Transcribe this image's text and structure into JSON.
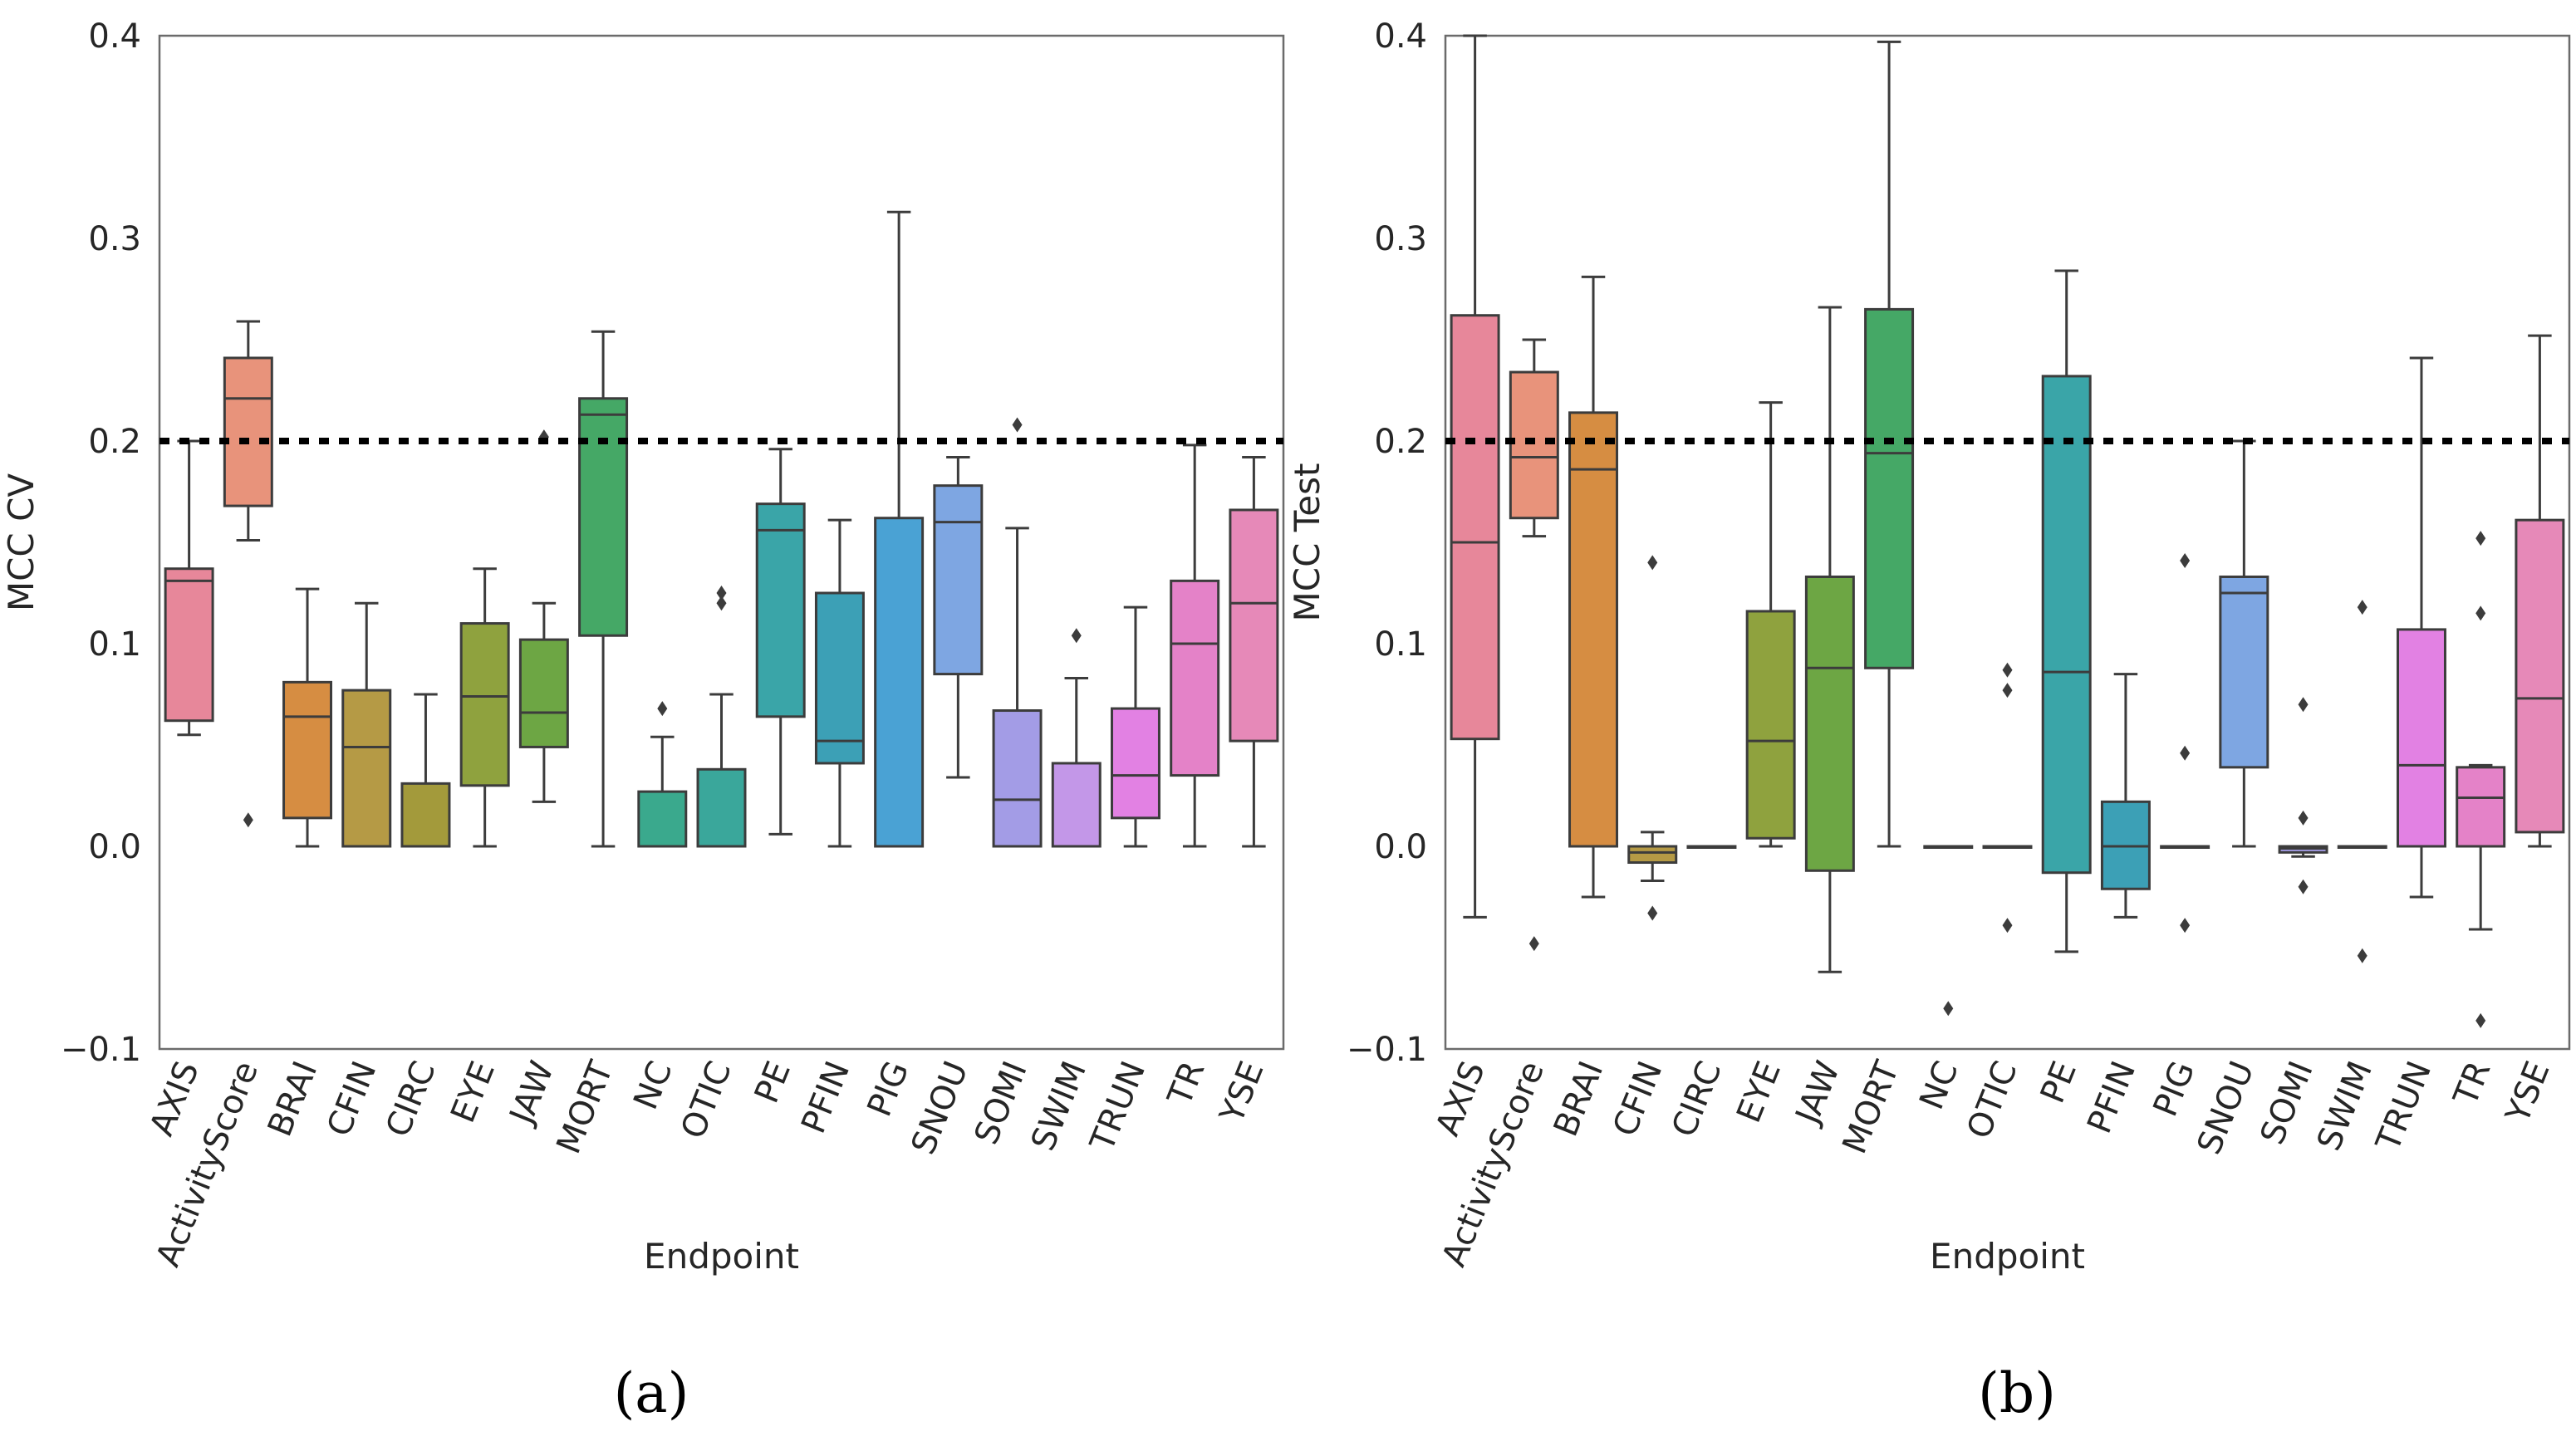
{
  "colors": {
    "AXIS": "#e7879a",
    "ActivityScore": "#e8937b",
    "BRAI": "#d68d42",
    "CFIN": "#b59a45",
    "CIRC": "#a39a3b",
    "EYE": "#8fa23e",
    "JAW": "#6da644",
    "MORT": "#45a866",
    "NC": "#3aa98d",
    "OTIC": "#3aa79b",
    "PE": "#3aa5a8",
    "PFIN": "#3ca0b6",
    "PIG": "#4aa2d4",
    "SNOU": "#7ea6e2",
    "SOMI": "#a39ce6",
    "SWIM": "#c397e8",
    "TRUN": "#e281e3",
    "TR": "#e482c8",
    "YSE": "#e689b8"
  },
  "chart_data": [
    {
      "type": "box",
      "panel_label": "(a)",
      "xlabel": "Endpoint",
      "ylabel": "MCC CV",
      "ylim": [
        -0.1,
        0.4
      ],
      "yticks": [
        "−0.1",
        "0.0",
        "0.1",
        "0.2",
        "0.3",
        "0.4"
      ],
      "threshold": 0.2,
      "categories": [
        "AXIS",
        "ActivityScore",
        "BRAI",
        "CFIN",
        "CIRC",
        "EYE",
        "JAW",
        "MORT",
        "NC",
        "OTIC",
        "PE",
        "PFIN",
        "PIG",
        "SNOU",
        "SOMI",
        "SWIM",
        "TRUN",
        "TR",
        "YSE"
      ],
      "boxes": [
        {
          "q1": 0.062,
          "median": 0.131,
          "q3": 0.137,
          "whislo": 0.055,
          "whishi": 0.2,
          "fliers": []
        },
        {
          "q1": 0.168,
          "median": 0.221,
          "q3": 0.241,
          "whislo": 0.151,
          "whishi": 0.259,
          "fliers": [
            0.013
          ]
        },
        {
          "q1": 0.014,
          "median": 0.064,
          "q3": 0.081,
          "whislo": 0.0,
          "whishi": 0.127,
          "fliers": []
        },
        {
          "q1": 0.0,
          "median": 0.049,
          "q3": 0.077,
          "whislo": 0.0,
          "whishi": 0.12,
          "fliers": []
        },
        {
          "q1": 0.0,
          "median": 0.0,
          "q3": 0.031,
          "whislo": 0.0,
          "whishi": 0.075,
          "fliers": []
        },
        {
          "q1": 0.03,
          "median": 0.074,
          "q3": 0.11,
          "whislo": 0.0,
          "whishi": 0.137,
          "fliers": []
        },
        {
          "q1": 0.049,
          "median": 0.066,
          "q3": 0.102,
          "whislo": 0.022,
          "whishi": 0.12,
          "fliers": [
            0.202
          ]
        },
        {
          "q1": 0.104,
          "median": 0.213,
          "q3": 0.221,
          "whislo": 0.0,
          "whishi": 0.254,
          "fliers": []
        },
        {
          "q1": 0.0,
          "median": 0.0,
          "q3": 0.027,
          "whislo": 0.0,
          "whishi": 0.054,
          "fliers": [
            0.068
          ]
        },
        {
          "q1": 0.0,
          "median": 0.0,
          "q3": 0.038,
          "whislo": 0.0,
          "whishi": 0.075,
          "fliers": [
            0.12,
            0.125
          ]
        },
        {
          "q1": 0.064,
          "median": 0.156,
          "q3": 0.169,
          "whislo": 0.006,
          "whishi": 0.196,
          "fliers": []
        },
        {
          "q1": 0.041,
          "median": 0.052,
          "q3": 0.125,
          "whislo": 0.0,
          "whishi": 0.161,
          "fliers": []
        },
        {
          "q1": 0.0,
          "median": 0.0,
          "q3": 0.162,
          "whislo": 0.0,
          "whishi": 0.313,
          "fliers": []
        },
        {
          "q1": 0.085,
          "median": 0.16,
          "q3": 0.178,
          "whislo": 0.034,
          "whishi": 0.192,
          "fliers": []
        },
        {
          "q1": 0.0,
          "median": 0.023,
          "q3": 0.067,
          "whislo": 0.0,
          "whishi": 0.157,
          "fliers": [
            0.208
          ]
        },
        {
          "q1": 0.0,
          "median": 0.0,
          "q3": 0.041,
          "whislo": 0.0,
          "whishi": 0.083,
          "fliers": [
            0.104
          ]
        },
        {
          "q1": 0.014,
          "median": 0.035,
          "q3": 0.068,
          "whislo": 0.0,
          "whishi": 0.118,
          "fliers": []
        },
        {
          "q1": 0.035,
          "median": 0.1,
          "q3": 0.131,
          "whislo": 0.0,
          "whishi": 0.198,
          "fliers": []
        },
        {
          "q1": 0.052,
          "median": 0.12,
          "q3": 0.166,
          "whislo": 0.0,
          "whishi": 0.192,
          "fliers": []
        }
      ]
    },
    {
      "type": "box",
      "panel_label": "(b)",
      "xlabel": "Endpoint",
      "ylabel": "MCC Test",
      "ylim": [
        -0.1,
        0.4
      ],
      "yticks": [
        "−0.1",
        "0.0",
        "0.1",
        "0.2",
        "0.3",
        "0.4"
      ],
      "threshold": 0.2,
      "categories": [
        "AXIS",
        "ActivityScore",
        "BRAI",
        "CFIN",
        "CIRC",
        "EYE",
        "JAW",
        "MORT",
        "NC",
        "OTIC",
        "PE",
        "PFIN",
        "PIG",
        "SNOU",
        "SOMI",
        "SWIM",
        "TRUN",
        "TR",
        "YSE"
      ],
      "boxes": [
        {
          "q1": 0.053,
          "median": 0.15,
          "q3": 0.262,
          "whislo": -0.035,
          "whishi": 0.4,
          "fliers": []
        },
        {
          "q1": 0.162,
          "median": 0.192,
          "q3": 0.234,
          "whislo": 0.153,
          "whishi": 0.25,
          "fliers": [
            -0.048
          ]
        },
        {
          "q1": 0.0,
          "median": 0.186,
          "q3": 0.214,
          "whislo": -0.025,
          "whishi": 0.281,
          "fliers": []
        },
        {
          "q1": -0.008,
          "median": -0.003,
          "q3": 0.0,
          "whislo": -0.017,
          "whishi": 0.007,
          "fliers": [
            0.14,
            -0.033
          ]
        },
        {
          "q1": 0.0,
          "median": 0.0,
          "q3": 0.0,
          "whislo": 0.0,
          "whishi": 0.0,
          "fliers": []
        },
        {
          "q1": 0.004,
          "median": 0.052,
          "q3": 0.116,
          "whislo": 0.0,
          "whishi": 0.219,
          "fliers": []
        },
        {
          "q1": -0.012,
          "median": 0.088,
          "q3": 0.133,
          "whislo": -0.062,
          "whishi": 0.266,
          "fliers": []
        },
        {
          "q1": 0.088,
          "median": 0.194,
          "q3": 0.265,
          "whislo": 0.0,
          "whishi": 0.397,
          "fliers": []
        },
        {
          "q1": 0.0,
          "median": 0.0,
          "q3": 0.0,
          "whislo": 0.0,
          "whishi": 0.0,
          "fliers": [
            -0.08
          ]
        },
        {
          "q1": 0.0,
          "median": 0.0,
          "q3": 0.0,
          "whislo": 0.0,
          "whishi": 0.0,
          "fliers": [
            0.087,
            0.077,
            -0.039
          ]
        },
        {
          "q1": -0.013,
          "median": 0.086,
          "q3": 0.232,
          "whislo": -0.052,
          "whishi": 0.284,
          "fliers": []
        },
        {
          "q1": -0.021,
          "median": 0.0,
          "q3": 0.022,
          "whislo": -0.035,
          "whishi": 0.085,
          "fliers": []
        },
        {
          "q1": 0.0,
          "median": 0.0,
          "q3": 0.0,
          "whislo": 0.0,
          "whishi": 0.0,
          "fliers": [
            0.141,
            0.046,
            -0.039
          ]
        },
        {
          "q1": 0.039,
          "median": 0.125,
          "q3": 0.133,
          "whislo": 0.0,
          "whishi": 0.2,
          "fliers": []
        },
        {
          "q1": -0.003,
          "median": -0.001,
          "q3": 0.0,
          "whislo": -0.005,
          "whishi": 0.0,
          "fliers": [
            0.07,
            0.014,
            -0.02
          ]
        },
        {
          "q1": 0.0,
          "median": 0.0,
          "q3": 0.0,
          "whislo": 0.0,
          "whishi": 0.0,
          "fliers": [
            0.118,
            -0.054
          ]
        },
        {
          "q1": 0.0,
          "median": 0.04,
          "q3": 0.107,
          "whislo": -0.025,
          "whishi": 0.241,
          "fliers": []
        },
        {
          "q1": 0.0,
          "median": 0.024,
          "q3": 0.039,
          "whislo": -0.041,
          "whishi": 0.04,
          "fliers": [
            0.152,
            0.115,
            -0.086
          ]
        },
        {
          "q1": 0.007,
          "median": 0.073,
          "q3": 0.161,
          "whislo": 0.0,
          "whishi": 0.252,
          "fliers": []
        }
      ]
    }
  ]
}
